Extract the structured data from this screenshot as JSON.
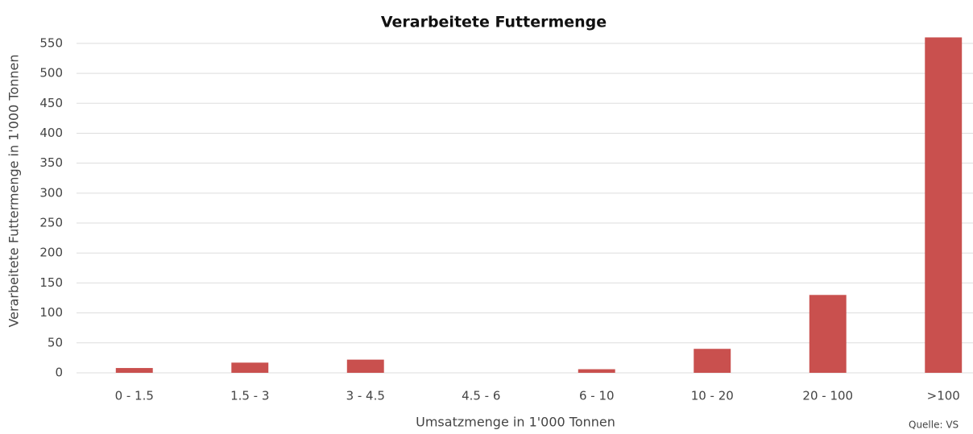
{
  "chart_data": {
    "type": "bar",
    "title": "Verarbeitete Futtermenge",
    "x_label": "Umsatzmenge in 1'000 Tonnen",
    "y_label": "Verarbeitete Futtermenge in 1'000 Tonnen",
    "source": "Quelle: VS",
    "categories": [
      "0 - 1.5",
      "1.5 - 3",
      "3 - 4.5",
      "4.5 - 6",
      "6 - 10",
      "10 - 20",
      "20 - 100",
      ">100"
    ],
    "values": [
      8,
      17,
      22,
      0,
      6,
      40,
      130,
      560
    ],
    "color": "#c9504e",
    "ylim": [
      0,
      570
    ],
    "yticks": [
      0,
      50,
      100,
      150,
      200,
      250,
      300,
      350,
      400,
      450,
      500,
      550
    ],
    "grid": true
  }
}
